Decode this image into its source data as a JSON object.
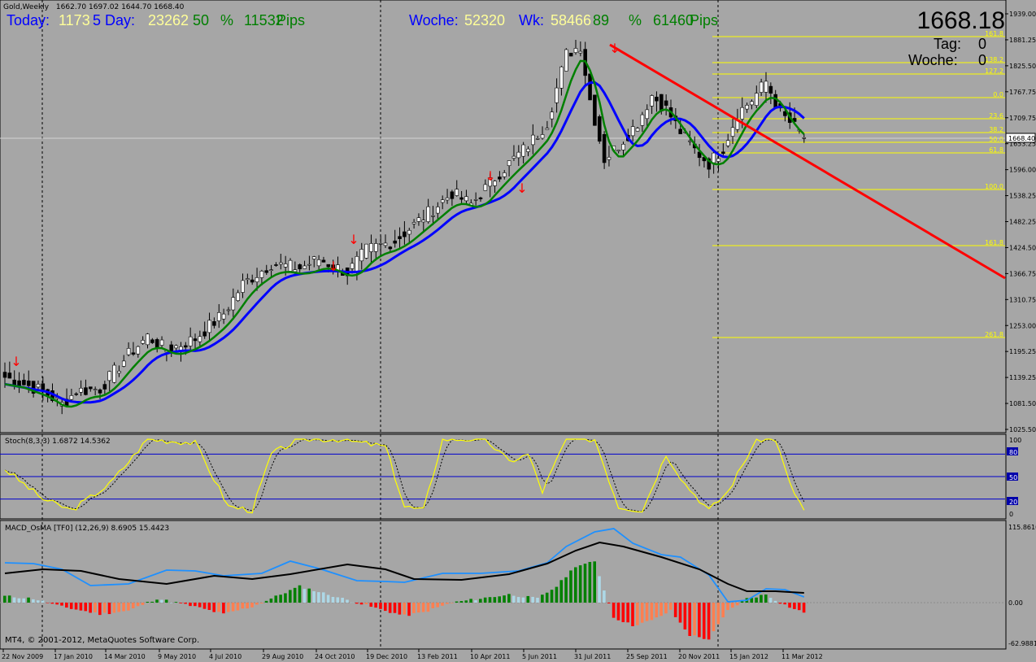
{
  "window": {
    "title": "Gold,Weekly",
    "ohlc": "1662.70 1697.02 1644.70 1668.40"
  },
  "header": {
    "today_label": "Today:",
    "today_value": "1173",
    "five_day_label": "5 Day:",
    "five_day_value": "23262",
    "pct_value_1": "50",
    "pct_sign_1": "%",
    "pips_value_1": "11532",
    "pips_label_1": "Pips",
    "woche_label": "Woche:",
    "woche_value": "52320",
    "wk_label": "Wk:",
    "wk_value": "58466",
    "pct_value_2": "89",
    "pct_sign_2": "%",
    "pips_value_2": "61460",
    "pips_label_2": "Pips"
  },
  "info_panel": {
    "price": "1668.18",
    "tag_label": "Tag:",
    "tag_value": "0",
    "woche_label": "Woche:",
    "woche_value": "0"
  },
  "price_axis": {
    "labels": [
      "1939.00",
      "1881.25",
      "1825.50",
      "1767.75",
      "1709.75",
      "1653.25",
      "1596.00",
      "1538.25",
      "1482.25",
      "1424.50",
      "1366.75",
      "1310.75",
      "1253.00",
      "1195.25",
      "1139.25",
      "1081.50",
      "1025.50"
    ],
    "current_price_tag": "1668.40"
  },
  "fib_labels": [
    "161.8",
    "138.2",
    "127.2",
    "0.0",
    "23.6",
    "38.2",
    "50.0",
    "61.8",
    "100.0",
    "161.8",
    "261.8"
  ],
  "stoch": {
    "label": "Stoch(8,3,3) 1.6872 14.5362",
    "axis": [
      "100",
      "80",
      "50",
      "20",
      "0"
    ]
  },
  "macd": {
    "label": "MACD_OsMA [TF0] (12,26,9) 8.6905 15.4423",
    "axis": [
      "115.8610",
      "0.00",
      "-62.9881"
    ]
  },
  "copyright": "MT4, © 2001-2012, MetaQuotes Software Corp.",
  "time_axis": [
    "22 Nov 2009",
    "17 Jan 2010",
    "14 Mar 2010",
    "9 May 2010",
    "4 Jul 2010",
    "29 Aug 2010",
    "24 Oct 2010",
    "19 Dec 2010",
    "13 Feb 2011",
    "10 Apr 2011",
    "5 Jun 2011",
    "31 Jul 2011",
    "25 Sep 2011",
    "20 Nov 2011",
    "15 Jan 2012",
    "11 Mar 2012"
  ],
  "chart_data": {
    "type": "candlestick",
    "symbol": "Gold",
    "timeframe": "Weekly",
    "x_range": [
      "22 Nov 2009",
      "11 Mar 2012"
    ],
    "ylim": [
      1025.5,
      1939.0
    ],
    "trendline": {
      "from": {
        "date": "14 Aug 2011",
        "price": 1880
      },
      "to": {
        "date": "Jun 2012",
        "price": 1355
      }
    },
    "colors": {
      "up": "#ffffff",
      "down": "#000000",
      "ma_fast": "#008000",
      "ma_slow": "#0000ff",
      "trend": "#ff0000",
      "fib": "#ffff00",
      "stoch_main": "#ffff00"
    }
  }
}
